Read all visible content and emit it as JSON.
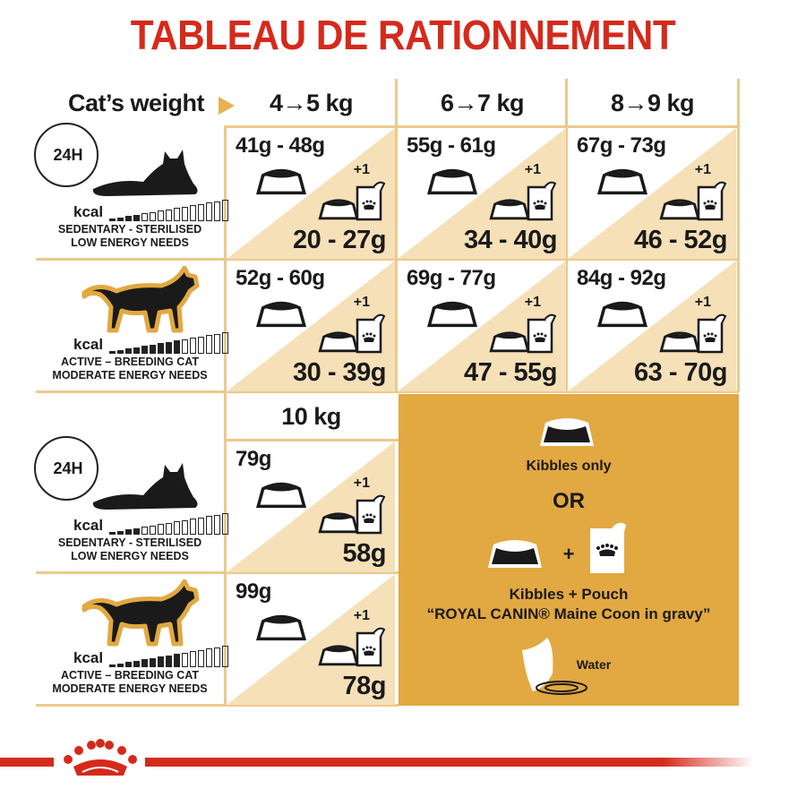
{
  "title": "TABLEAU DE RATIONNEMENT",
  "header": {
    "label": "Cat’s weight",
    "arrow_icon": "triangle-right-icon",
    "weights": [
      "4→5 kg",
      "6→7 kg",
      "8→9 kg"
    ],
    "weight_10": "10 kg"
  },
  "clock_label": "24H",
  "profiles": [
    {
      "kcal": "kcal",
      "line1": "SEDENTARY - STERILISED",
      "line2": "LOW ENERGY NEEDS",
      "energy_level": 4,
      "energy_total": 15,
      "icon": "lying-cat-icon"
    },
    {
      "kcal": "kcal",
      "line1": "ACTIVE – BREEDING CAT",
      "line2": "MODERATE ENERGY NEEDS",
      "energy_level": 9,
      "energy_total": 15,
      "icon": "walking-cat-icon"
    }
  ],
  "table": [
    [
      {
        "kibbles": "41g - 48g",
        "plus": "+1",
        "mixed": "20 - 27g"
      },
      {
        "kibbles": "55g - 61g",
        "plus": "+1",
        "mixed": "34 - 40g"
      },
      {
        "kibbles": "67g - 73g",
        "plus": "+1",
        "mixed": "46 - 52g"
      }
    ],
    [
      {
        "kibbles": "52g - 60g",
        "plus": "+1",
        "mixed": "30 - 39g"
      },
      {
        "kibbles": "69g - 77g",
        "plus": "+1",
        "mixed": "47 - 55g"
      },
      {
        "kibbles": "84g - 92g",
        "plus": "+1",
        "mixed": "63 - 70g"
      }
    ]
  ],
  "table_10kg": [
    {
      "kibbles": "79g",
      "plus": "+1",
      "mixed": "58g"
    },
    {
      "kibbles": "99g",
      "plus": "+1",
      "mixed": "78g"
    }
  ],
  "legend": {
    "kibbles_only": "Kibbles only",
    "or": "OR",
    "plus": "+",
    "kibbles_pouch": "Kibbles + Pouch",
    "pouch_name": "“ROYAL CANIN® Maine Coon in gravy”",
    "water": "Water"
  },
  "colors": {
    "brand_red": "#d42a1c",
    "gold": "#e2a841",
    "beige": "#f6e0b8",
    "line": "#ecc98c"
  }
}
